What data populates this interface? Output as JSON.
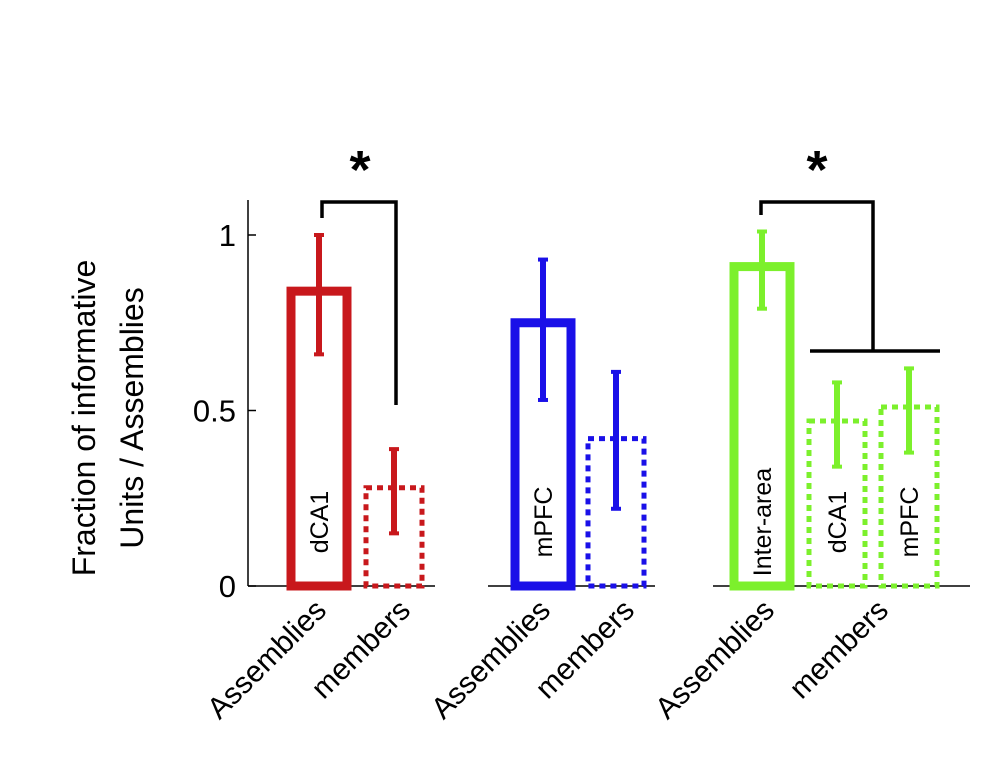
{
  "chart_data": {
    "type": "bar",
    "ylabel_lines": [
      "Fraction of informative",
      "Units / Assemblies"
    ],
    "ylim": [
      0,
      1.1
    ],
    "yticks": [
      0,
      0.5,
      1
    ],
    "ytick_labels": [
      "0",
      "0.5",
      "1"
    ],
    "grid": false,
    "legend": "none",
    "groups": [
      {
        "color": "#c8181c",
        "bars": [
          {
            "label": "dCA1",
            "value": 0.84,
            "err_low": 0.66,
            "err_high": 1.0,
            "style": "solid"
          },
          {
            "label": "",
            "value": 0.28,
            "err_low": 0.15,
            "err_high": 0.39,
            "style": "dotted"
          }
        ],
        "xticks": [
          "Assemblies",
          "members"
        ],
        "sig_marker": "*"
      },
      {
        "color": "#1a10e8",
        "bars": [
          {
            "label": "mPFC",
            "value": 0.75,
            "err_low": 0.53,
            "err_high": 0.93,
            "style": "solid"
          },
          {
            "label": "",
            "value": 0.42,
            "err_low": 0.22,
            "err_high": 0.61,
            "style": "dotted"
          }
        ],
        "xticks": [
          "Assemblies",
          "members"
        ]
      },
      {
        "color": "#7cf02c",
        "bars": [
          {
            "label": "Inter-area",
            "value": 0.91,
            "err_low": 0.79,
            "err_high": 1.01,
            "style": "solid"
          },
          {
            "label": "dCA1",
            "value": 0.47,
            "err_low": 0.34,
            "err_high": 0.58,
            "style": "dotted"
          },
          {
            "label": "mPFC",
            "value": 0.51,
            "err_low": 0.38,
            "err_high": 0.62,
            "style": "dotted"
          }
        ],
        "xticks": [
          "Assemblies",
          "members"
        ],
        "sig_marker": "*"
      }
    ]
  }
}
